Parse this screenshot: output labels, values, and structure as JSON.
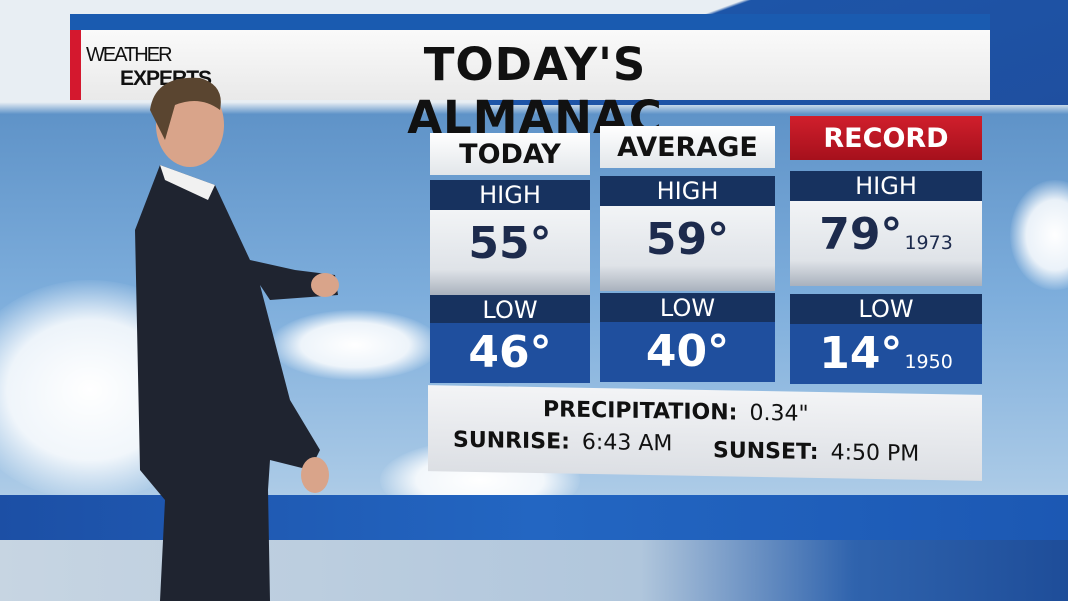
{
  "logo": {
    "line1": "WEATHER",
    "line2": "EXPERTS"
  },
  "title": "TODAY'S ALMANAC",
  "columns": [
    {
      "header": "TODAY",
      "high_label": "HIGH",
      "high": "55°",
      "low_label": "LOW",
      "low": "46°"
    },
    {
      "header": "AVERAGE",
      "high_label": "HIGH",
      "high": "59°",
      "low_label": "LOW",
      "low": "40°"
    },
    {
      "header": "RECORD",
      "high_label": "HIGH",
      "high": "79°",
      "high_year": "1973",
      "low_label": "LOW",
      "low": "14°",
      "low_year": "1950"
    }
  ],
  "info": {
    "precip_label": "PRECIPITATION:",
    "precip": "0.34\"",
    "sunrise_label": "SUNRISE:",
    "sunrise": "6:43 AM",
    "sunset_label": "SUNSET:",
    "sunset": "4:50 PM"
  },
  "colors": {
    "brand_blue": "#1a5bb0",
    "record_red": "#c0182a",
    "label_navy": "#17325f",
    "low_blue": "#1f4f9e"
  }
}
